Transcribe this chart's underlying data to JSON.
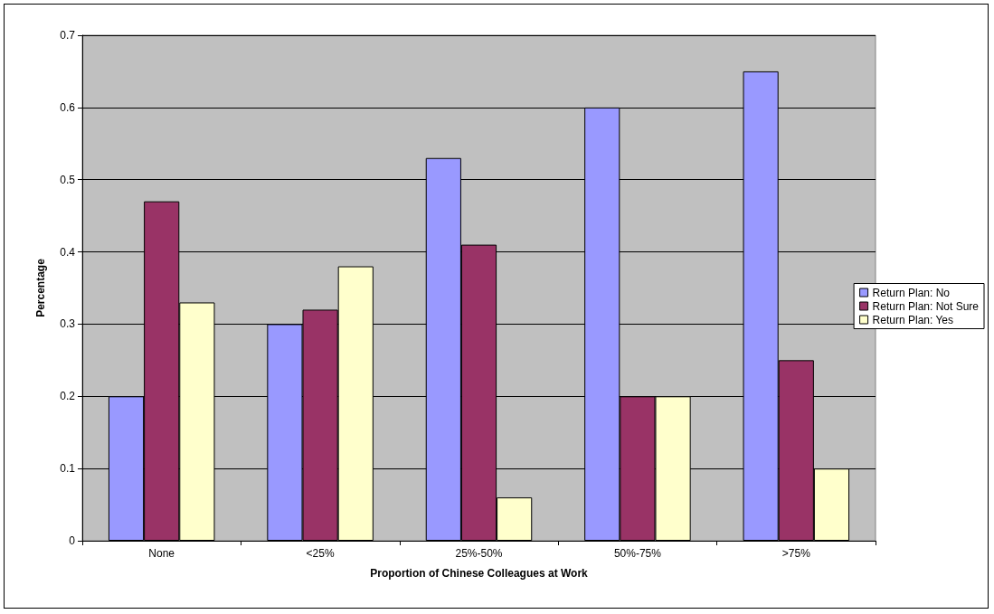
{
  "chart_data": {
    "type": "bar",
    "xlabel": "Proportion of Chinese Colleagues at Work",
    "ylabel": "Percentage",
    "categories": [
      "None",
      "<25%",
      "25%-50%",
      "50%-75%",
      ">75%"
    ],
    "series": [
      {
        "name": "Return Plan: No",
        "color": "#9999ff",
        "values": [
          0.2,
          0.3,
          0.53,
          0.6,
          0.65
        ]
      },
      {
        "name": "Return Plan: Not Sure",
        "color": "#993366",
        "values": [
          0.47,
          0.32,
          0.41,
          0.2,
          0.25
        ]
      },
      {
        "name": "Return Plan: Yes",
        "color": "#ffffcc",
        "values": [
          0.33,
          0.38,
          0.06,
          0.2,
          0.1
        ]
      }
    ],
    "ylim": [
      0,
      0.7
    ],
    "yticks": [
      0,
      0.1,
      0.2,
      0.3,
      0.4,
      0.5,
      0.6,
      0.7
    ],
    "grid": "y",
    "legend": "right"
  }
}
